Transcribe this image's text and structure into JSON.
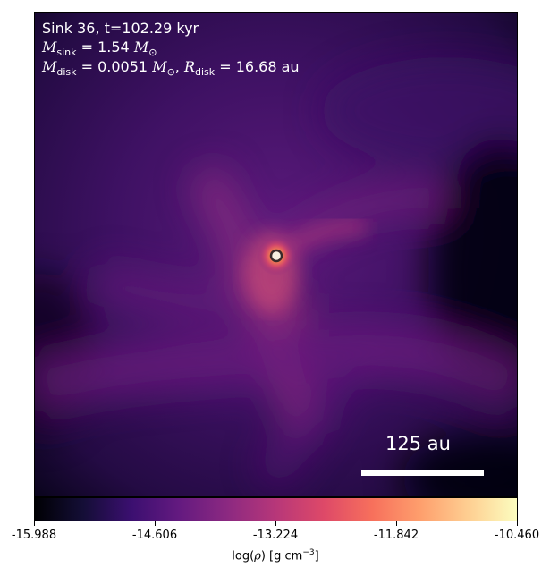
{
  "title": {
    "sink_line": "Sink 36, t=102.29 kyr",
    "msink_symbol": "M",
    "msink_sub": "sink",
    "msink_value": " = 1.54 ",
    "msink_unit": "M",
    "msink_unit_sub": "⊙",
    "mdisk_symbol": "M",
    "mdisk_sub": "disk",
    "mdisk_value": " = 0.0051 ",
    "mdisk_unit": "M",
    "mdisk_unit_sub": "⊙",
    "rdisk_sep": ", ",
    "rdisk_symbol": "R",
    "rdisk_sub": "disk",
    "rdisk_value": " = 16.68 au"
  },
  "scalebar": {
    "label": "125 au"
  },
  "colorbar": {
    "ticks": [
      "-15.988",
      "-14.606",
      "-13.224",
      "-11.842",
      "-10.460"
    ],
    "label_prefix": "log(",
    "label_rho": "ρ",
    "label_suffix": ") [g cm",
    "label_exp": "−3",
    "label_end": "]",
    "colormap": "magma"
  },
  "colors": {
    "background_dark": "#000004",
    "filament": "#8c2981",
    "sink_core": "#f7705c",
    "sink_marker": "#ffffff"
  }
}
